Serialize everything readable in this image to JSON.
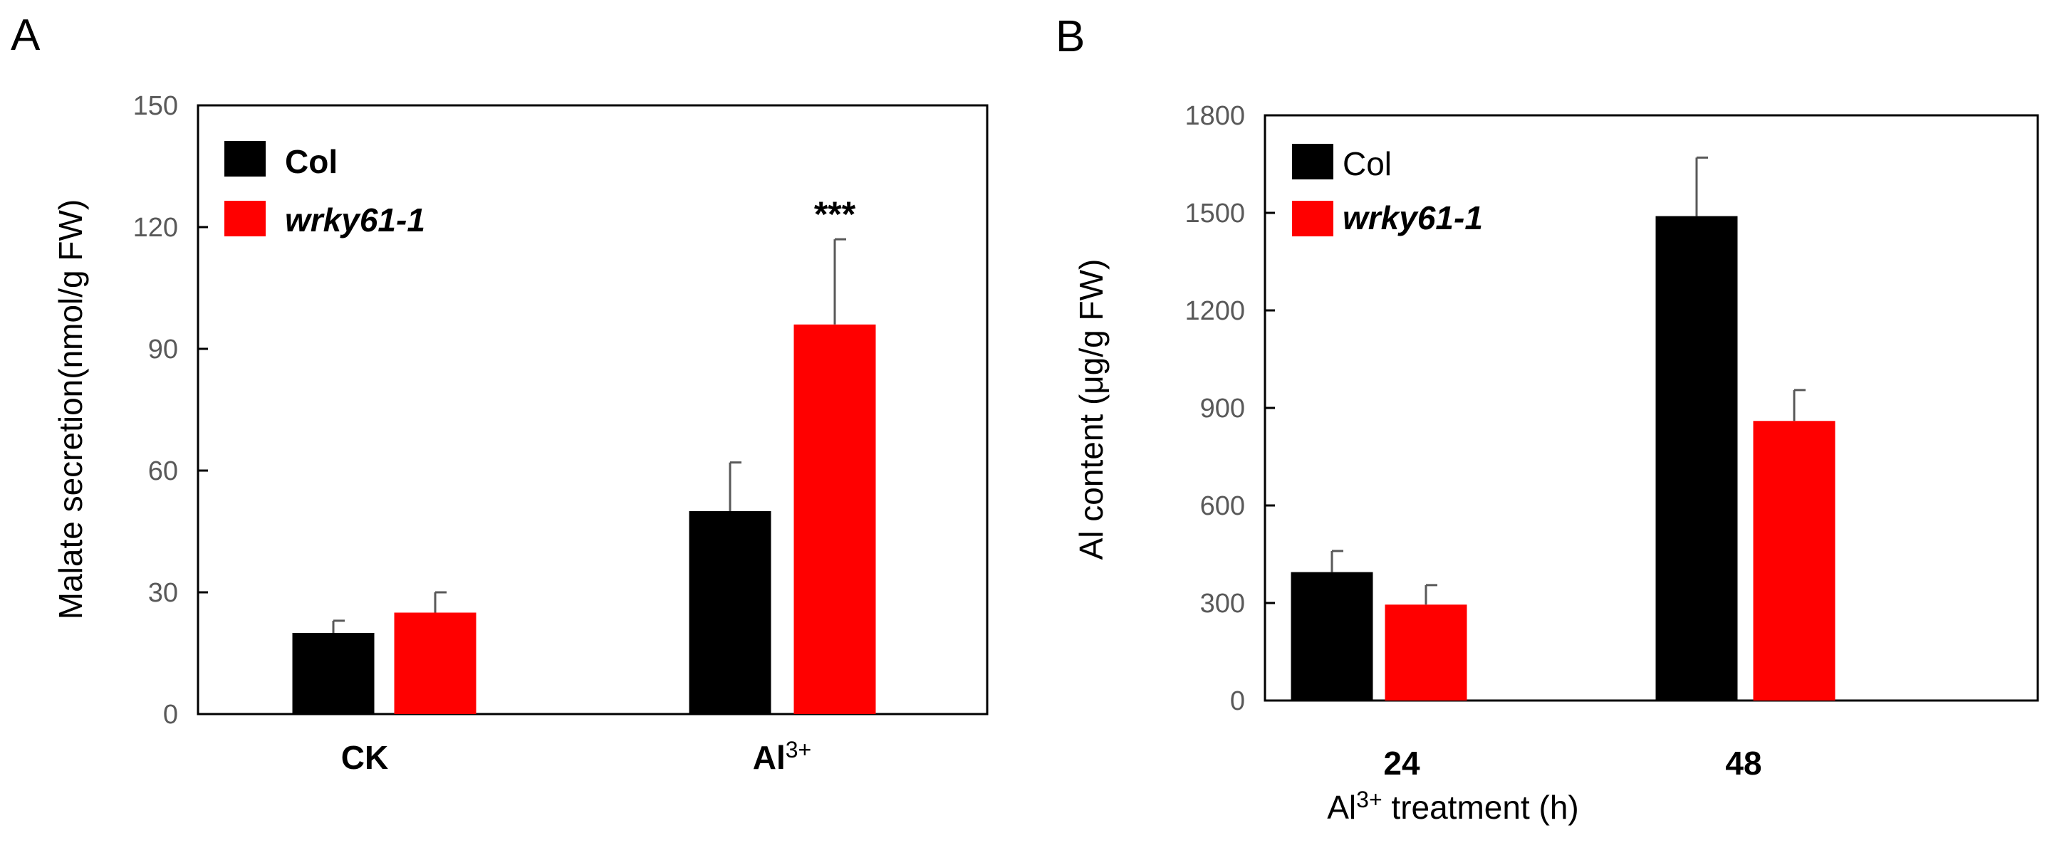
{
  "chart_data": [
    {
      "panel_label": "A",
      "type": "bar",
      "categories": [
        {
          "base": "CK",
          "sup": ""
        },
        {
          "base": "Al",
          "sup": "3+"
        }
      ],
      "series": [
        {
          "name": "Col",
          "color": "#000000",
          "values": [
            20,
            50
          ],
          "errors": [
            3,
            12
          ]
        },
        {
          "name": "wrky61-1",
          "color": "#ff0000",
          "values": [
            25,
            96
          ],
          "errors": [
            5,
            21
          ]
        }
      ],
      "ylabel": "Malate secretion(nmol/g FW)",
      "xlabel": "",
      "ylim": [
        0,
        150
      ],
      "yticks": [
        0,
        30,
        60,
        90,
        120,
        150
      ],
      "annotations": [
        {
          "text": "***",
          "category_index": 1,
          "series_index": 1
        }
      ],
      "legend": "top-left",
      "grid": false
    },
    {
      "panel_label": "B",
      "type": "bar",
      "categories": [
        {
          "base": "24",
          "sup": ""
        },
        {
          "base": "48",
          "sup": ""
        }
      ],
      "series": [
        {
          "name": "Col",
          "color": "#000000",
          "values": [
            395,
            1490
          ],
          "errors": [
            65,
            180
          ]
        },
        {
          "name": "wrky61-1",
          "color": "#ff0000",
          "values": [
            295,
            860
          ],
          "errors": [
            60,
            95
          ]
        }
      ],
      "ylabel": "Al content  (μg/g FW)",
      "xlabel": {
        "pre": "Al",
        "sup": "3+",
        "post": " treatment (h)"
      },
      "ylim": [
        0,
        1800
      ],
      "yticks": [
        0,
        300,
        600,
        900,
        1200,
        1500,
        1800
      ],
      "annotations": [],
      "legend": "top-left",
      "grid": false
    }
  ]
}
